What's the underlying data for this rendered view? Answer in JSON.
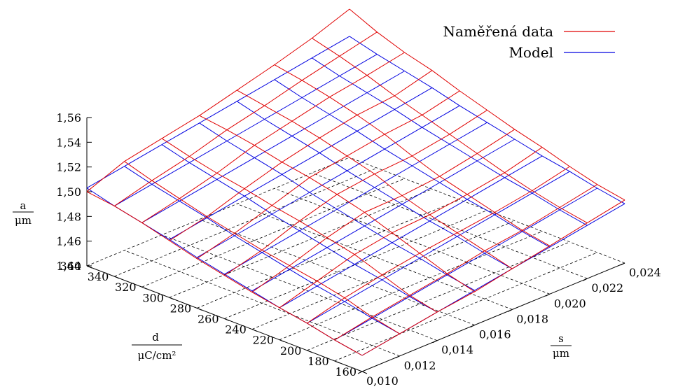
{
  "chart_data": {
    "type": "surface3d",
    "title": "",
    "legend": {
      "placement": "top-right",
      "entries": [
        {
          "name": "Naměřená data",
          "color": "#e00000"
        },
        {
          "name": "Model",
          "color": "#0000e0"
        }
      ]
    },
    "z_axis": {
      "label_num": "a",
      "label_den": "μm",
      "range": [
        1.44,
        1.57
      ],
      "ticks": [
        "1,44",
        "1,46",
        "1,48",
        "1,50",
        "1,52",
        "1,54",
        "1,56"
      ]
    },
    "d_axis": {
      "label_num": "d",
      "label_den": "μC/cm²",
      "range": [
        160,
        360
      ],
      "ticks": [
        "360",
        "340",
        "320",
        "300",
        "280",
        "260",
        "240",
        "220",
        "200",
        "180",
        "160"
      ]
    },
    "s_axis": {
      "label_num": "s",
      "label_den": "μm",
      "range": [
        0.01,
        0.024
      ],
      "ticks": [
        "0,010",
        "0,012",
        "0,014",
        "0,016",
        "0,018",
        "0,020",
        "0,022",
        "0,024"
      ]
    },
    "grid": true,
    "series": [
      {
        "name": "Naměřená data",
        "kind": "measured surface",
        "d": [
          160,
          180,
          200,
          220,
          240,
          260,
          280,
          300,
          320,
          340,
          360
        ],
        "s": [
          0.01,
          0.012,
          0.014,
          0.016,
          0.018,
          0.02,
          0.022,
          0.024
        ],
        "z": [
          [
            1.453,
            1.458,
            1.463,
            1.467,
            1.473,
            1.479,
            1.485,
            1.491
          ],
          [
            1.457,
            1.463,
            1.468,
            1.473,
            1.479,
            1.483,
            1.489,
            1.495
          ],
          [
            1.462,
            1.47,
            1.476,
            1.481,
            1.485,
            1.489,
            1.494,
            1.501
          ],
          [
            1.466,
            1.475,
            1.484,
            1.489,
            1.491,
            1.495,
            1.5,
            1.508
          ],
          [
            1.47,
            1.479,
            1.489,
            1.497,
            1.498,
            1.501,
            1.507,
            1.514
          ],
          [
            1.475,
            1.483,
            1.494,
            1.503,
            1.507,
            1.509,
            1.514,
            1.521
          ],
          [
            1.48,
            1.488,
            1.498,
            1.508,
            1.513,
            1.518,
            1.521,
            1.528
          ],
          [
            1.486,
            1.493,
            1.503,
            1.512,
            1.519,
            1.525,
            1.528,
            1.536
          ],
          [
            1.492,
            1.499,
            1.507,
            1.517,
            1.524,
            1.531,
            1.536,
            1.542
          ],
          [
            1.497,
            1.505,
            1.512,
            1.521,
            1.528,
            1.536,
            1.543,
            1.55
          ],
          [
            1.5,
            1.512,
            1.518,
            1.524,
            1.532,
            1.54,
            1.549,
            1.56
          ]
        ]
      },
      {
        "name": "Model",
        "kind": "fitted surface",
        "d": [
          160,
          180,
          200,
          220,
          240,
          260,
          280,
          300,
          320,
          340,
          360
        ],
        "s": [
          0.01,
          0.012,
          0.014,
          0.016,
          0.018,
          0.02,
          0.022,
          0.024
        ],
        "z": [
          [
            1.453,
            1.458,
            1.463,
            1.468,
            1.473,
            1.478,
            1.483,
            1.488
          ],
          [
            1.457,
            1.462,
            1.467,
            1.472,
            1.477,
            1.482,
            1.487,
            1.492
          ],
          [
            1.462,
            1.467,
            1.472,
            1.477,
            1.482,
            1.487,
            1.492,
            1.497
          ],
          [
            1.466,
            1.471,
            1.476,
            1.481,
            1.486,
            1.491,
            1.496,
            1.501
          ],
          [
            1.471,
            1.476,
            1.481,
            1.486,
            1.491,
            1.496,
            1.501,
            1.506
          ],
          [
            1.476,
            1.481,
            1.486,
            1.491,
            1.496,
            1.501,
            1.506,
            1.511
          ],
          [
            1.481,
            1.486,
            1.491,
            1.496,
            1.501,
            1.506,
            1.511,
            1.516
          ],
          [
            1.487,
            1.492,
            1.497,
            1.502,
            1.507,
            1.512,
            1.517,
            1.522
          ],
          [
            1.492,
            1.497,
            1.502,
            1.507,
            1.512,
            1.517,
            1.522,
            1.527
          ],
          [
            1.497,
            1.502,
            1.507,
            1.512,
            1.517,
            1.522,
            1.527,
            1.532
          ],
          [
            1.503,
            1.508,
            1.513,
            1.518,
            1.523,
            1.528,
            1.533,
            1.538
          ]
        ]
      }
    ]
  }
}
